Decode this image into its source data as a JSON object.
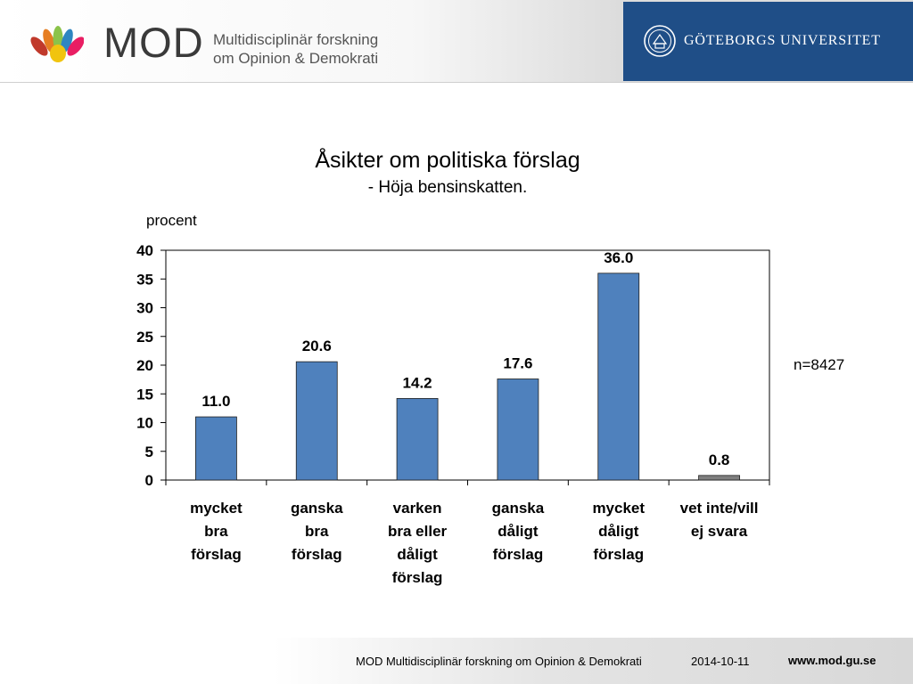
{
  "header": {
    "logo_word": "MOD",
    "logo_sub_line1": "Multidisciplinär forskning",
    "logo_sub_line2": "om Opinion & Demokrati",
    "university": "GÖTEBORGS UNIVERSITET"
  },
  "chart_data": {
    "type": "bar",
    "title": "Åsikter om politiska förslag",
    "subtitle": "- Höja bensinskatten.",
    "ylabel": "procent",
    "xlabel": "",
    "ylim": [
      0,
      40
    ],
    "yticks": [
      0,
      5,
      10,
      15,
      20,
      25,
      30,
      35,
      40
    ],
    "grid": false,
    "categories": [
      [
        "mycket",
        "bra",
        "förslag"
      ],
      [
        "ganska",
        "bra",
        "förslag"
      ],
      [
        "varken",
        "bra eller",
        "dåligt",
        "förslag"
      ],
      [
        "ganska",
        "dåligt",
        "förslag"
      ],
      [
        "mycket",
        "dåligt",
        "förslag"
      ],
      [
        "vet inte/vill",
        "ej svara"
      ]
    ],
    "values": [
      11.0,
      20.6,
      14.2,
      17.6,
      36.0,
      0.8
    ],
    "value_labels": [
      "11.0",
      "20.6",
      "14.2",
      "17.6",
      "36.0",
      "0.8"
    ],
    "bar_colors": [
      "#4f81bd",
      "#4f81bd",
      "#4f81bd",
      "#4f81bd",
      "#4f81bd",
      "#7f7f7f"
    ],
    "annotation": "n=8427"
  },
  "footer": {
    "org": "MOD Multidisciplinär forskning om Opinion & Demokrati",
    "date": "2014-10-11",
    "url": "www.mod.gu.se"
  }
}
